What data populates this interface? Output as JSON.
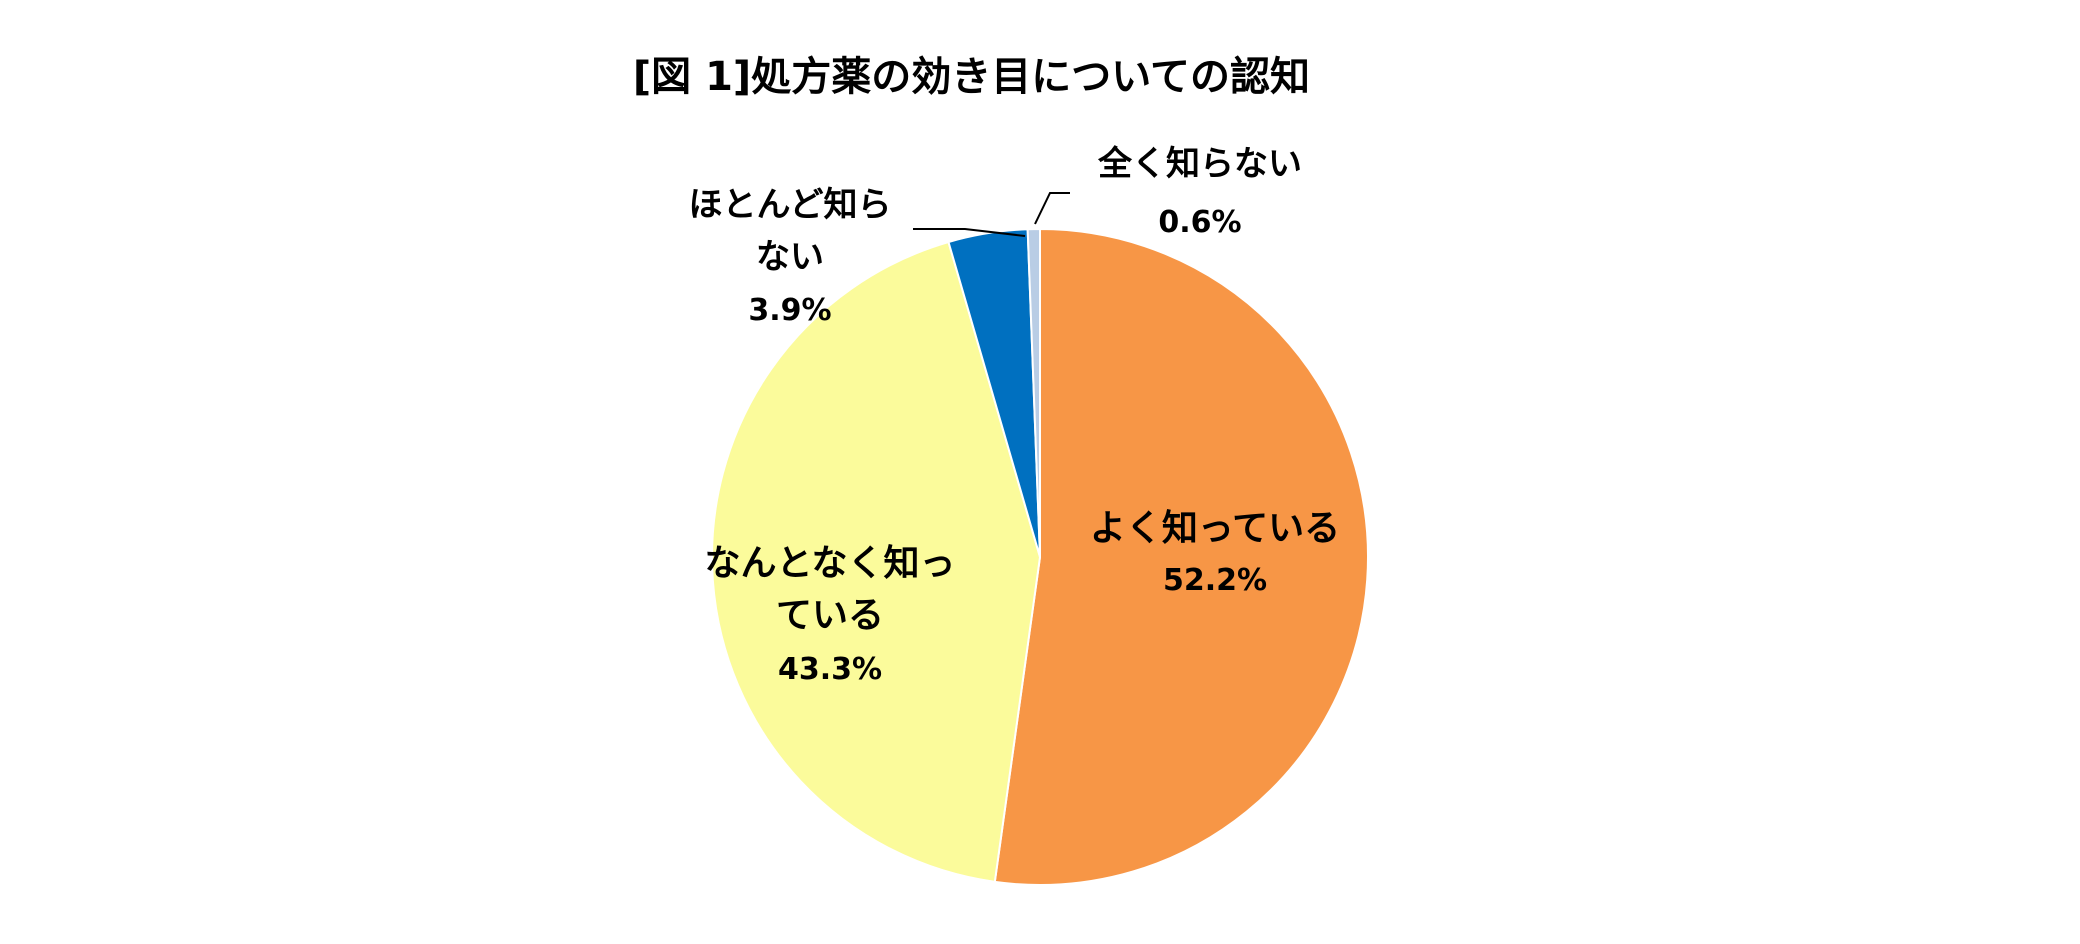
{
  "chart_data": {
    "type": "pie",
    "title": "[図 1]処方薬の効き目についての認知",
    "start_angle_deg": 0,
    "direction": "clockwise",
    "slices": [
      {
        "name": "よく知っている",
        "label_lines": [
          "よく知っている"
        ],
        "value": 52.2,
        "value_label": "52.2%",
        "color": "#F79646"
      },
      {
        "name": "なんとなく知っている",
        "label_lines": [
          "なんとなく知っ",
          "ている"
        ],
        "value": 43.3,
        "value_label": "43.3%",
        "color": "#FBFB9B"
      },
      {
        "name": "ほとんど知らない",
        "label_lines": [
          "ほとんど知ら",
          "ない"
        ],
        "value": 3.9,
        "value_label": "3.9%",
        "color": "#0070C0"
      },
      {
        "name": "全く知らない",
        "label_lines": [
          "全く知らない"
        ],
        "value": 0.6,
        "value_label": "0.6%",
        "color": "#B9CDE5"
      }
    ]
  }
}
